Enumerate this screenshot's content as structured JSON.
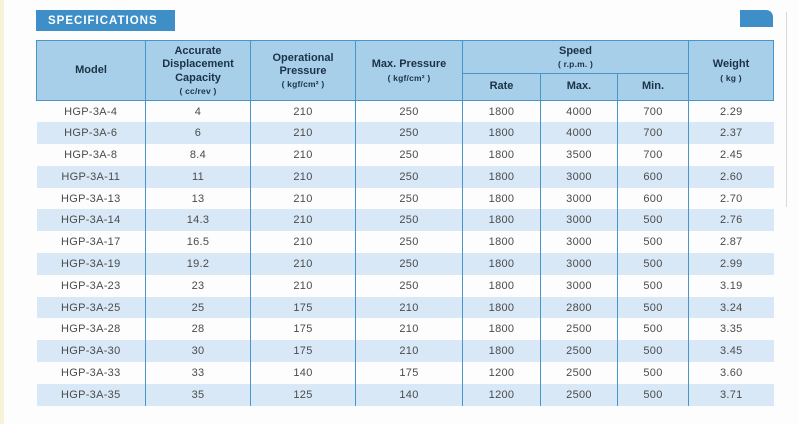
{
  "page": {
    "title": "SPECIFICATIONS"
  },
  "colors": {
    "title_bar": "#3e8fc7",
    "header_fill": "#a7cfe9",
    "stripe": "#d8e8f6",
    "border": "#4795c9",
    "header_text": "#1b3247",
    "data_text": "#4b4b4b",
    "page_edge": "#f7f3d8"
  },
  "table": {
    "columns": {
      "model": {
        "label": "Model",
        "unit": ""
      },
      "capacity": {
        "label": "Accurate Displacement Capacity",
        "unit": "( cc/rev )"
      },
      "op_pressure": {
        "label": "Operational Pressure",
        "unit": "( kgf/cm² )"
      },
      "max_pressure": {
        "label": "Max. Pressure",
        "unit": "( kgf/cm² )"
      },
      "weight": {
        "label": "Weight",
        "unit": "( kg )"
      }
    },
    "speed_group": {
      "label": "Speed",
      "unit": "( r.p.m. )",
      "children": [
        "Rate",
        "Max.",
        "Min."
      ]
    },
    "rows": [
      [
        "HGP-3A-4",
        "4",
        "210",
        "250",
        "1800",
        "4000",
        "700",
        "2.29"
      ],
      [
        "HGP-3A-6",
        "6",
        "210",
        "250",
        "1800",
        "4000",
        "700",
        "2.37"
      ],
      [
        "HGP-3A-8",
        "8.4",
        "210",
        "250",
        "1800",
        "3500",
        "700",
        "2.45"
      ],
      [
        "HGP-3A-11",
        "11",
        "210",
        "250",
        "1800",
        "3000",
        "600",
        "2.60"
      ],
      [
        "HGP-3A-13",
        "13",
        "210",
        "250",
        "1800",
        "3000",
        "600",
        "2.70"
      ],
      [
        "HGP-3A-14",
        "14.3",
        "210",
        "250",
        "1800",
        "3000",
        "500",
        "2.76"
      ],
      [
        "HGP-3A-17",
        "16.5",
        "210",
        "250",
        "1800",
        "3000",
        "500",
        "2.87"
      ],
      [
        "HGP-3A-19",
        "19.2",
        "210",
        "250",
        "1800",
        "3000",
        "500",
        "2.99"
      ],
      [
        "HGP-3A-23",
        "23",
        "210",
        "250",
        "1800",
        "3000",
        "500",
        "3.19"
      ],
      [
        "HGP-3A-25",
        "25",
        "175",
        "210",
        "1800",
        "2800",
        "500",
        "3.24"
      ],
      [
        "HGP-3A-28",
        "28",
        "175",
        "210",
        "1800",
        "2500",
        "500",
        "3.35"
      ],
      [
        "HGP-3A-30",
        "30",
        "175",
        "210",
        "1800",
        "2500",
        "500",
        "3.45"
      ],
      [
        "HGP-3A-33",
        "33",
        "140",
        "175",
        "1200",
        "2500",
        "500",
        "3.60"
      ],
      [
        "HGP-3A-35",
        "35",
        "125",
        "140",
        "1200",
        "2500",
        "500",
        "3.71"
      ]
    ]
  }
}
